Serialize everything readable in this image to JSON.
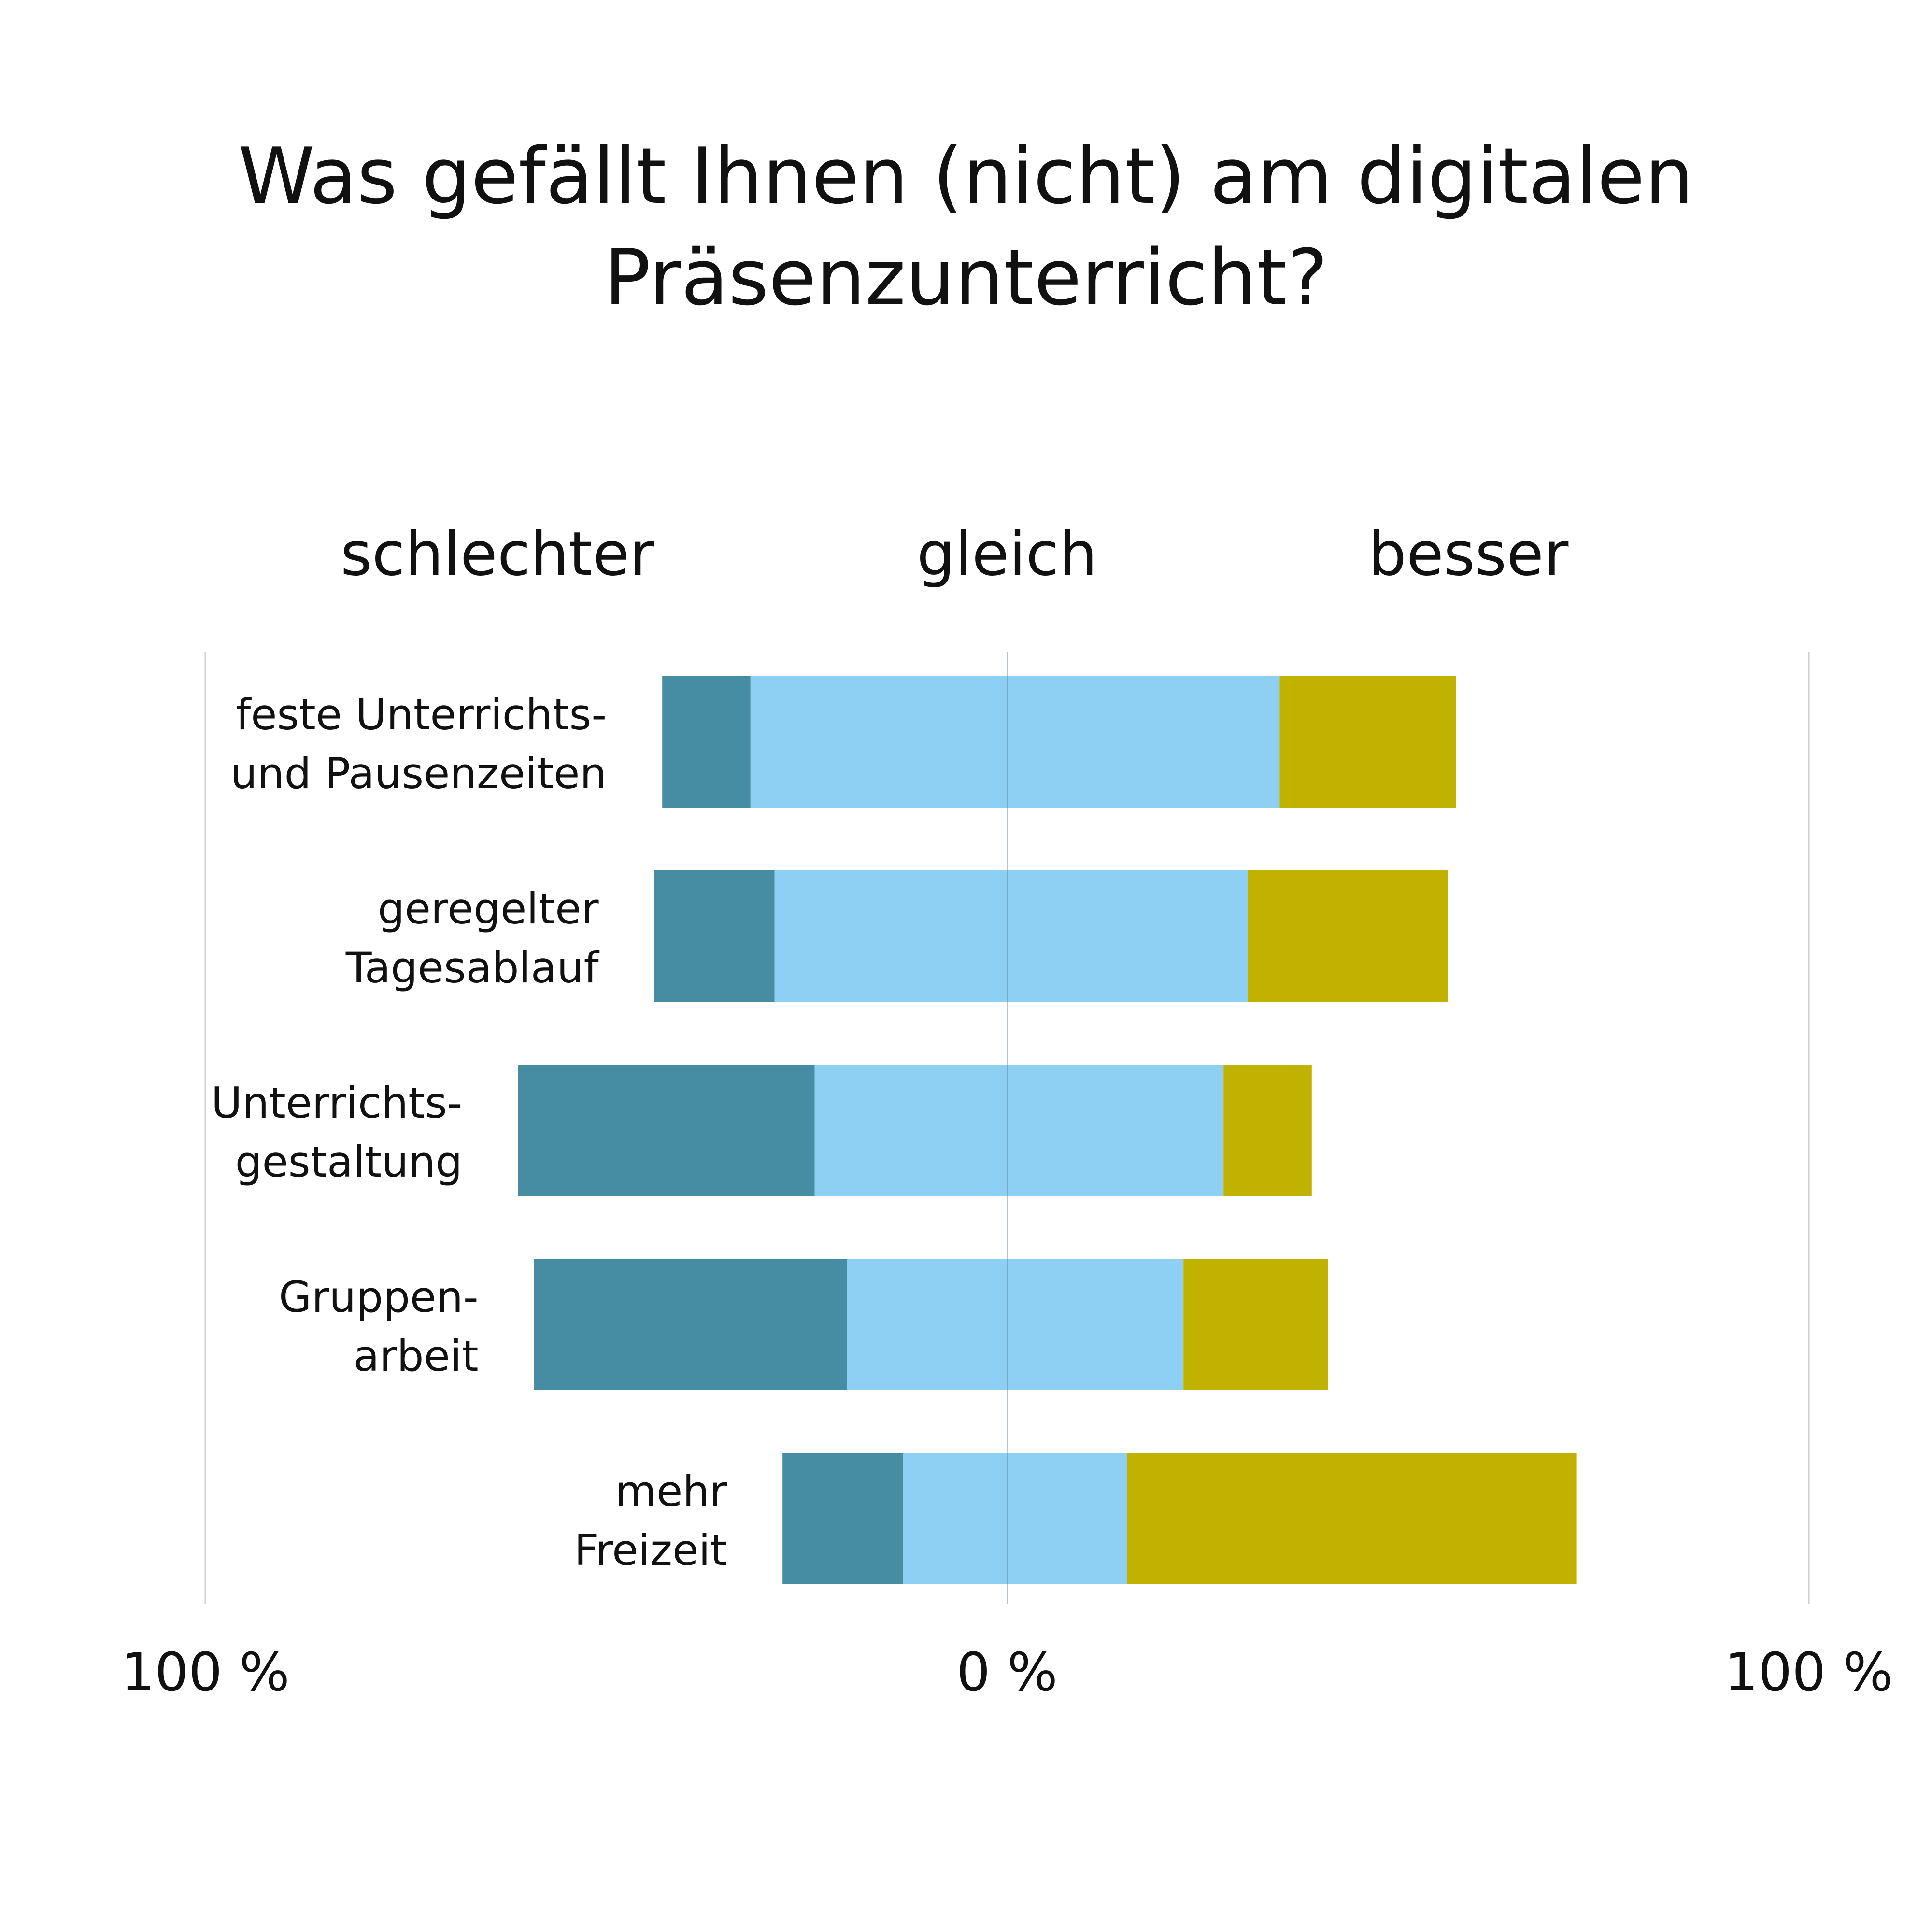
{
  "chart_data": {
    "type": "bar",
    "orientation": "horizontal",
    "layout": "diverging-stacked",
    "title": "Was gefällt Ihnen (nicht) am digitalen Präsenzunterricht?",
    "title_lines": [
      "Was gefällt Ihnen (nicht) am digitalen",
      "Präsenzunterricht?"
    ],
    "categories": [
      "feste Unterrichts- und Pausenzeiten",
      "geregelter Tagesablauf",
      "Unterrichts- gestaltung",
      "Gruppen- arbeit",
      "mehr Freizeit"
    ],
    "category_lines": [
      [
        "feste Unterrichts-",
        "und Pausenzeiten"
      ],
      [
        "geregelter",
        "Tagesablauf"
      ],
      [
        "Unterrichts-",
        "gestaltung"
      ],
      [
        "Gruppen-",
        "arbeit"
      ],
      [
        "mehr",
        "Freizeit"
      ]
    ],
    "series": [
      {
        "name": "schlechter",
        "color": "#468ca2",
        "values": [
          11,
          15,
          37,
          39,
          15
        ]
      },
      {
        "name": "gleich",
        "color": "#8dd0f3",
        "values": [
          66,
          59,
          51,
          42,
          28
        ]
      },
      {
        "name": "besser",
        "color": "#c2b200",
        "values": [
          22,
          25,
          11,
          18,
          56
        ]
      }
    ],
    "gleich_left_share": [
      32,
      29,
      24,
      20,
      13
    ],
    "column_headers": [
      "schlechter",
      "gleich",
      "besser"
    ],
    "x_ticks": [
      {
        "value": -100,
        "label": "100 %"
      },
      {
        "value": 0,
        "label": "0 %"
      },
      {
        "value": 100,
        "label": "100 %"
      }
    ],
    "xlim": [
      -100,
      100
    ],
    "grid": true,
    "legend": "none"
  }
}
